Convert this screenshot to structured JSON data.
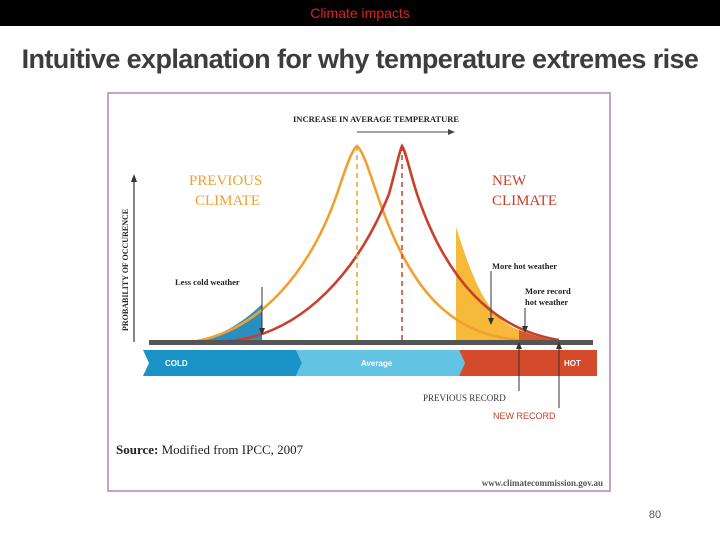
{
  "header": {
    "section": "Climate impacts"
  },
  "slide": {
    "title": "Intuitive explanation for why temperature extremes rise",
    "page_number": "80"
  },
  "figure": {
    "top_label": "INCREASE IN AVERAGE TEMPERATURE",
    "y_axis_label": "PROBABILITY OF OCCURENCE",
    "previous_climate": [
      "PREVIOUS",
      "CLIMATE"
    ],
    "new_climate": [
      "NEW",
      "CLIMATE"
    ],
    "less_cold": "Less cold weather",
    "more_hot": "More hot weather",
    "more_record": [
      "More record",
      "hot weather"
    ],
    "cold": "COLD",
    "average": "Average",
    "hot": "HOT",
    "previous_record": "PREVIOUS RECORD",
    "new_record": "NEW RECORD",
    "source_label": "Source:",
    "source_text": "Modified from IPCC, 2007",
    "website": "www.climatecommission.gov.au"
  },
  "colors": {
    "previous": "#f0a030",
    "new": "#c8402a",
    "cold_fill": "#2a8fc0",
    "hot_fill": "#f7b93a",
    "record_fill": "#d2562e",
    "title_accent": "#e02020"
  }
}
